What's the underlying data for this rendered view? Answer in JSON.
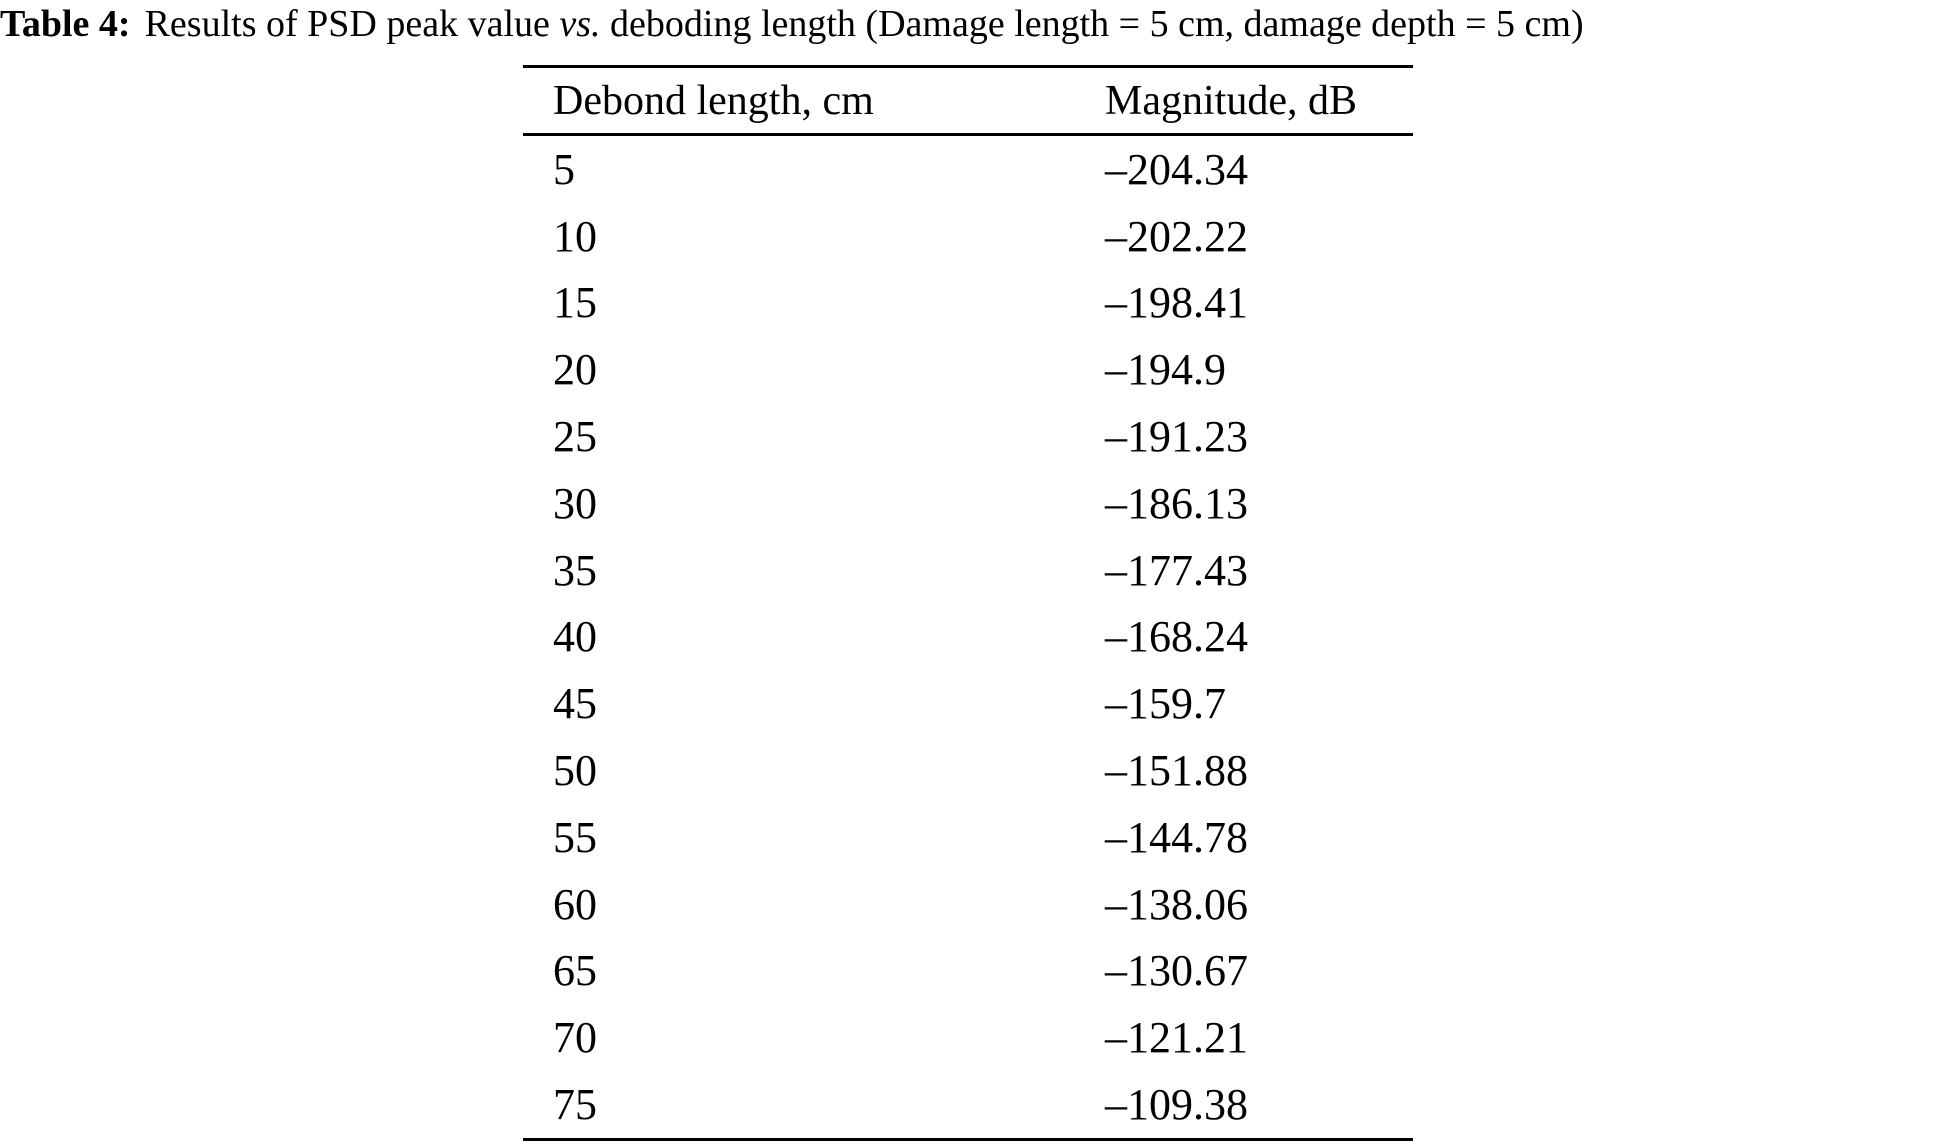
{
  "caption": {
    "label": "Table 4:",
    "before_vs": "Results of PSD peak value",
    "vs": "vs.",
    "after_vs": "deboding length (Damage length = 5 cm, damage depth = 5 cm)"
  },
  "table": {
    "columns": [
      "Debond length, cm",
      "Magnitude, dB"
    ],
    "rows": [
      [
        "5",
        "–204.34"
      ],
      [
        "10",
        "–202.22"
      ],
      [
        "15",
        "–198.41"
      ],
      [
        "20",
        "–194.9"
      ],
      [
        "25",
        "–191.23"
      ],
      [
        "30",
        "–186.13"
      ],
      [
        "35",
        "–177.43"
      ],
      [
        "40",
        "–168.24"
      ],
      [
        "45",
        "–159.7"
      ],
      [
        "50",
        "–151.88"
      ],
      [
        "55",
        "–144.78"
      ],
      [
        "60",
        "–138.06"
      ],
      [
        "65",
        "–130.67"
      ],
      [
        "70",
        "–121.21"
      ],
      [
        "75",
        "–109.38"
      ]
    ]
  },
  "colors": {
    "text": "#000000",
    "background": "#ffffff",
    "rule": "#000000"
  }
}
